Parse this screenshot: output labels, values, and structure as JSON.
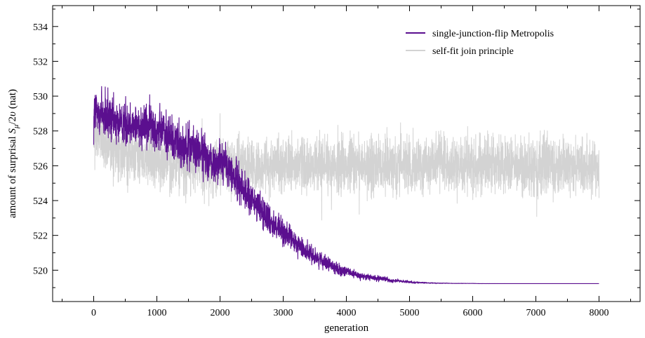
{
  "chart_data": {
    "type": "line",
    "xlabel": "generation",
    "ylabel": "amount of surprisal S_μ/2υ (nat)",
    "ylabel_parts": {
      "pre": "amount of surprisal ",
      "sym": "S",
      "sub": "μ",
      "post1": "/2",
      "sym2": "υ",
      "post2": " (nat)"
    },
    "xlim": [
      -650,
      8650
    ],
    "ylim": [
      518.2,
      535.2
    ],
    "xticks": [
      0,
      1000,
      2000,
      3000,
      4000,
      5000,
      6000,
      7000,
      8000
    ],
    "xtick_labels": [
      "0",
      "1000",
      "2000",
      "3000",
      "4000",
      "5000",
      "6000",
      "7000",
      "8000"
    ],
    "yticks": [
      520,
      522,
      524,
      526,
      528,
      530,
      532,
      534
    ],
    "ytick_labels": [
      "520",
      "522",
      "524",
      "526",
      "528",
      "530",
      "532",
      "534"
    ],
    "grid": false,
    "legend_position": "top-right",
    "x": [
      0,
      100,
      200,
      300,
      400,
      500,
      600,
      700,
      800,
      900,
      1000,
      1100,
      1200,
      1300,
      1400,
      1500,
      1600,
      1700,
      1800,
      1900,
      2000,
      2100,
      2200,
      2300,
      2400,
      2500,
      2600,
      2700,
      2800,
      2900,
      3000,
      3100,
      3200,
      3300,
      3400,
      3500,
      3600,
      3700,
      3800,
      3900,
      4000,
      4100,
      4200,
      4300,
      4400,
      4500,
      4600,
      4700,
      4800,
      4900,
      5000,
      5100,
      5200,
      5300,
      5400,
      5500,
      5600,
      5700,
      5800,
      5900,
      6000,
      6100,
      6200,
      6300,
      6400,
      6500,
      6600,
      6700,
      6800,
      6900,
      7000,
      7100,
      7200,
      7300,
      7400,
      7500,
      7600,
      7700,
      7800,
      7900,
      8000
    ],
    "series": [
      {
        "name": "single-junction-flip Metropolis",
        "color": "#5b0f8f",
        "mean": [
          528.8,
          529.2,
          528.6,
          528.6,
          528.4,
          528.5,
          528.4,
          528.3,
          528.4,
          528.4,
          528.1,
          528.0,
          527.7,
          527.5,
          527.2,
          527.2,
          526.9,
          526.8,
          526.4,
          526.1,
          526.4,
          526.0,
          525.4,
          525.0,
          524.5,
          524.0,
          523.7,
          523.3,
          522.9,
          522.5,
          522.2,
          521.9,
          521.5,
          521.3,
          521.0,
          520.8,
          520.6,
          520.4,
          520.2,
          520.0,
          519.9,
          519.8,
          519.7,
          519.6,
          519.6,
          519.5,
          519.5,
          519.4,
          519.4,
          519.35,
          519.32,
          519.3,
          519.28,
          519.27,
          519.26,
          519.25,
          519.25,
          519.24,
          519.24,
          519.24,
          519.24,
          519.23,
          519.23,
          519.23,
          519.23,
          519.23,
          519.23,
          519.23,
          519.23,
          519.23,
          519.23,
          519.23,
          519.23,
          519.23,
          519.23,
          519.23,
          519.23,
          519.23,
          519.23,
          519.23,
          519.23
        ],
        "amplitude": [
          2.6,
          2.6,
          2.2,
          2.0,
          1.9,
          1.9,
          1.9,
          1.9,
          1.9,
          1.9,
          1.9,
          1.9,
          1.9,
          1.9,
          1.9,
          1.8,
          1.8,
          1.8,
          1.8,
          1.7,
          1.7,
          1.7,
          1.6,
          1.6,
          1.5,
          1.5,
          1.4,
          1.4,
          1.3,
          1.2,
          1.1,
          1.0,
          0.9,
          0.85,
          0.8,
          0.7,
          0.6,
          0.55,
          0.5,
          0.45,
          0.4,
          0.35,
          0.3,
          0.28,
          0.26,
          0.24,
          0.2,
          0.15,
          0.13,
          0.11,
          0.09,
          0.07,
          0.05,
          0.04,
          0.03,
          0.025,
          0.02,
          0.015,
          0.012,
          0.01,
          0.008,
          0.006,
          0.005,
          0.004,
          0.003,
          0.003,
          0.002,
          0.002,
          0.002,
          0.002,
          0.002,
          0.002,
          0.002,
          0.002,
          0.002,
          0.002,
          0.002,
          0.002,
          0.002,
          0.002,
          0.002
        ]
      },
      {
        "name": "self-fit join principle",
        "color": "#d3d3d3",
        "mean": [
          527.6,
          527.6,
          527.2,
          526.9,
          526.8,
          526.7,
          526.7,
          526.6,
          526.5,
          526.5,
          526.4,
          526.3,
          526.2,
          526.2,
          526.1,
          526.1,
          526.0,
          526.0,
          526.0,
          526.0,
          526.0,
          526.0,
          526.0,
          526.0,
          526.0,
          526.0,
          526.0,
          526.0,
          526.0,
          526.0,
          526.0,
          526.0,
          526.0,
          526.0,
          526.0,
          526.0,
          526.0,
          526.0,
          526.0,
          526.0,
          526.0,
          526.0,
          526.0,
          526.0,
          526.0,
          526.0,
          526.0,
          526.0,
          526.0,
          526.0,
          526.0,
          526.0,
          526.0,
          526.0,
          526.0,
          526.0,
          526.0,
          526.0,
          526.0,
          526.0,
          526.0,
          526.0,
          526.0,
          526.0,
          526.0,
          526.0,
          526.0,
          526.0,
          526.0,
          526.0,
          526.0,
          526.0,
          526.0,
          526.0,
          526.0,
          526.0,
          526.0,
          526.0,
          526.0,
          526.0,
          526.0
        ],
        "amplitude": [
          2.4,
          2.4,
          2.4,
          2.4,
          2.4,
          2.4,
          2.4,
          2.4,
          2.4,
          2.4,
          2.4,
          2.4,
          2.4,
          2.4,
          2.4,
          2.4,
          2.4,
          2.4,
          2.4,
          2.4,
          2.4,
          2.4,
          2.4,
          2.4,
          2.4,
          2.4,
          2.4,
          2.4,
          2.4,
          2.4,
          2.4,
          2.4,
          2.4,
          2.4,
          2.4,
          2.4,
          2.4,
          2.4,
          2.4,
          2.4,
          2.4,
          2.4,
          2.4,
          2.4,
          2.4,
          2.4,
          2.4,
          2.4,
          2.4,
          2.4,
          2.4,
          2.4,
          2.4,
          2.4,
          2.4,
          2.4,
          2.4,
          2.4,
          2.4,
          2.4,
          2.4,
          2.4,
          2.4,
          2.4,
          2.4,
          2.4,
          2.4,
          2.4,
          2.4,
          2.4,
          2.4,
          2.4,
          2.4,
          2.4,
          2.4,
          2.4,
          2.4,
          2.4,
          2.4,
          2.4,
          2.4
        ]
      }
    ]
  }
}
